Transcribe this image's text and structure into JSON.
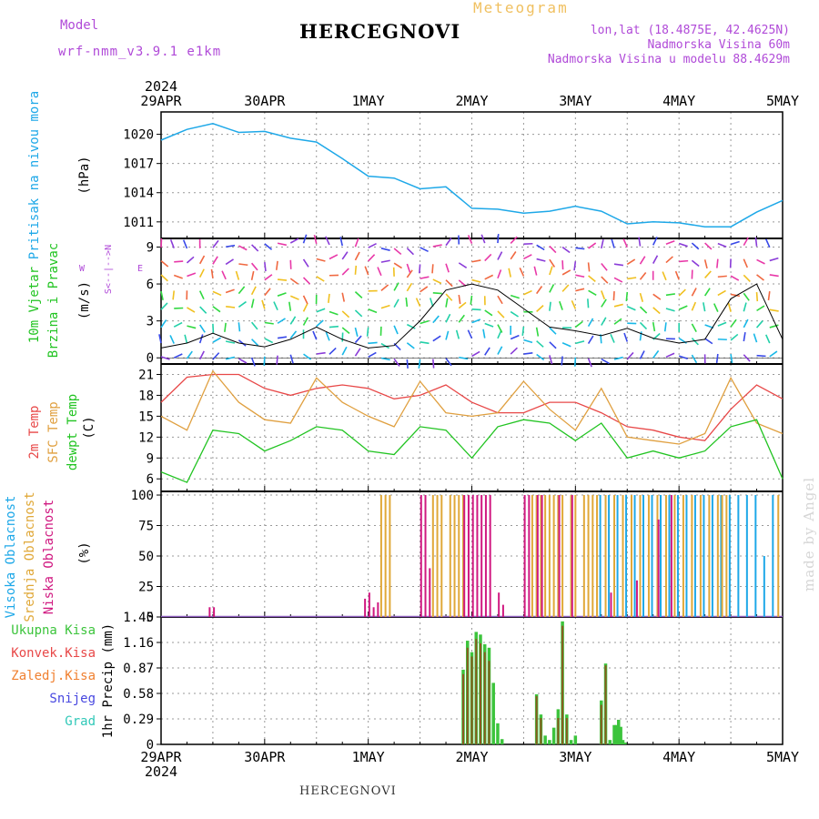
{
  "header": {
    "title": "HERCEGNOVI",
    "model_label": "Model",
    "model_name": "wrf-nmm_v3.9.1 e1km",
    "meteogram_label": "Meteogram",
    "lonlat": "lon,lat (18.4875E, 42.4625N)",
    "elevation": "Nadmorska Visina 60m",
    "model_elevation": "Nadmorska Visina u modelu 88.4629m"
  },
  "footer": {
    "station": "HERCEGNOVI",
    "watermark": "made by Angel"
  },
  "colors": {
    "pressure": "#1ea8e8",
    "temp2m": "#e84848",
    "sfc_temp": "#e0a040",
    "dewpt": "#22c422",
    "cloud_high": "#1ea8e8",
    "cloud_mid": "#e0a838",
    "cloud_low": "#d01880",
    "rain_total": "#3cc43c",
    "rain_conv": "#e84848",
    "rain_frozen": "#f08030",
    "snow": "#4848e0",
    "graupel": "#30c8b8",
    "grid": "#999999",
    "meta": "#b04ad8"
  },
  "chart_data": [
    {
      "type": "line",
      "name": "pressure",
      "ylabel": "Pritisak na nivou mora",
      "unit": "(hPa)",
      "yticks": [
        1011,
        1014,
        1017,
        1020
      ],
      "ylim": [
        1009.3,
        1022.3
      ],
      "x_top_labels": [
        "29APR",
        "30APR",
        "1MAY",
        "2MAY",
        "3MAY",
        "4MAY",
        "5MAY"
      ],
      "x_top_year": "2024",
      "x_hours": [
        0,
        6,
        12,
        18,
        24,
        30,
        36,
        42,
        48,
        54,
        60,
        66,
        72,
        78,
        84,
        90,
        96,
        102,
        108,
        114,
        120,
        126,
        132,
        138,
        144
      ],
      "values": [
        1019.4,
        1020.5,
        1021.1,
        1020.2,
        1020.3,
        1019.6,
        1019.2,
        1017.5,
        1015.7,
        1015.5,
        1014.4,
        1014.6,
        1012.4,
        1012.3,
        1011.9,
        1012.1,
        1012.6,
        1012.1,
        1010.8,
        1011.0,
        1010.9,
        1010.5,
        1010.5,
        1012.0,
        1013.2
      ]
    },
    {
      "type": "wind",
      "name": "wind",
      "ylabel": "10m Vjetar Brzina i Pravac",
      "unit": "(m/s)",
      "yticks": [
        0,
        3,
        6,
        9
      ],
      "ylim": [
        -0.5,
        9.7
      ],
      "compass": {
        "north": "N",
        "west": "W",
        "east": "E",
        "axis": "S<--|-->N"
      },
      "x_hours": [
        0,
        6,
        12,
        18,
        24,
        30,
        36,
        42,
        48,
        54,
        60,
        66,
        72,
        78,
        84,
        90,
        96,
        102,
        108,
        114,
        120,
        126,
        132,
        138,
        144
      ],
      "speed": [
        0.8,
        1.2,
        2.0,
        1.2,
        0.9,
        1.5,
        2.5,
        1.5,
        0.8,
        1.0,
        3.0,
        5.5,
        6.0,
        5.5,
        4.0,
        2.5,
        2.2,
        1.8,
        2.4,
        1.6,
        1.2,
        1.5,
        4.8,
        6.0,
        1.5
      ]
    },
    {
      "type": "line",
      "name": "temperature",
      "ylabel_lines": [
        "2m Temp",
        "SFC Temp",
        "dewpt Temp"
      ],
      "unit": "(C)",
      "yticks": [
        6,
        9,
        12,
        15,
        18,
        21
      ],
      "ylim": [
        4.2,
        22.5
      ],
      "x_hours": [
        0,
        6,
        12,
        18,
        24,
        30,
        36,
        42,
        48,
        54,
        60,
        66,
        72,
        78,
        84,
        90,
        96,
        102,
        108,
        114,
        120,
        126,
        132,
        138,
        144
      ],
      "series": [
        {
          "name": "2m Temp",
          "values": [
            17.0,
            20.6,
            21.0,
            21.0,
            19.0,
            18.0,
            19.0,
            19.5,
            19.0,
            17.5,
            18.0,
            19.5,
            17.0,
            15.5,
            15.5,
            17.0,
            17.0,
            15.5,
            13.5,
            13.0,
            12.0,
            11.5,
            16.0,
            19.5,
            17.5
          ]
        },
        {
          "name": "SFC Temp",
          "values": [
            15.0,
            13.0,
            21.5,
            17.0,
            14.5,
            14.0,
            20.5,
            17.0,
            15.0,
            13.5,
            20.0,
            15.5,
            15.0,
            15.5,
            20.0,
            16.0,
            13.0,
            19.0,
            12.0,
            11.5,
            11.0,
            12.5,
            20.5,
            14.0,
            12.5
          ]
        },
        {
          "name": "dewpt Temp",
          "values": [
            7.0,
            5.5,
            13.0,
            12.5,
            10.0,
            11.5,
            13.5,
            13.0,
            10.0,
            9.5,
            13.5,
            13.0,
            9.0,
            13.5,
            14.5,
            14.0,
            11.5,
            14.0,
            9.0,
            10.0,
            9.0,
            10.0,
            13.5,
            14.5,
            6.0
          ]
        }
      ]
    },
    {
      "type": "bar",
      "name": "clouds",
      "ylabel_lines": [
        "Visoka Oblacnost",
        "Srednja Oblacnost",
        "Niska Oblacnost"
      ],
      "unit": "(%)",
      "yticks": [
        0,
        25,
        50,
        75,
        100
      ],
      "ylim": [
        0,
        103
      ],
      "series": [
        {
          "name": "Visoka Oblacnost",
          "x_hours": [
            102,
            104,
            106,
            108,
            110,
            112,
            114,
            116,
            118,
            120,
            122,
            124,
            126,
            128,
            130,
            132,
            134,
            136,
            138,
            140,
            142
          ],
          "values": [
            100,
            100,
            100,
            100,
            100,
            100,
            100,
            100,
            100,
            100,
            100,
            100,
            100,
            100,
            100,
            100,
            100,
            100,
            100,
            50,
            100
          ]
        },
        {
          "name": "Srednja Oblacnost",
          "x_hours": [
            51,
            52,
            53,
            63,
            64,
            65,
            67,
            68,
            69,
            70,
            86,
            87,
            88,
            89,
            90,
            91,
            92,
            93,
            95,
            96,
            98,
            99,
            100,
            101,
            103,
            105,
            107,
            109,
            111,
            113,
            115,
            117,
            119,
            121,
            123,
            125,
            127,
            129,
            130,
            131,
            143
          ],
          "values": [
            100,
            100,
            100,
            100,
            100,
            100,
            100,
            100,
            100,
            100,
            100,
            100,
            100,
            100,
            100,
            100,
            100,
            100,
            100,
            100,
            100,
            100,
            100,
            100,
            100,
            100,
            100,
            100,
            100,
            100,
            100,
            100,
            100,
            100,
            100,
            100,
            100,
            100,
            100,
            100,
            100
          ]
        },
        {
          "name": "Niska Oblacnost",
          "x_hours": [
            11,
            12,
            47,
            48,
            49,
            50,
            60,
            61,
            62,
            70,
            71,
            72,
            73,
            74,
            75,
            76,
            78,
            79,
            84,
            85,
            87,
            88,
            92,
            95,
            104,
            110,
            115,
            118
          ],
          "values": [
            8,
            8,
            15,
            20,
            8,
            12,
            100,
            100,
            40,
            100,
            100,
            100,
            100,
            100,
            100,
            100,
            20,
            10,
            100,
            100,
            100,
            100,
            100,
            100,
            20,
            30,
            80,
            100
          ]
        }
      ]
    },
    {
      "type": "bar",
      "name": "precipitation",
      "ylabel": "1hr Precip",
      "unit": "(mm)",
      "yticks": [
        0,
        0.29,
        0.58,
        0.87,
        1.16,
        1.45
      ],
      "ylim": [
        0,
        1.45
      ],
      "legend": [
        "Ukupna Kisa",
        "Konvek.Kisa",
        "Zaledj.Kisa",
        "Snijeg",
        "Grad"
      ],
      "x_bottom_labels": [
        "29APR",
        "30APR",
        "1MAY",
        "2MAY",
        "3MAY",
        "4MAY",
        "5MAY"
      ],
      "x_bottom_year": "2024",
      "series": [
        {
          "name": "Ukupna Kisa",
          "x_hours": [
            70,
            71,
            72,
            73,
            74,
            75,
            76,
            77,
            78,
            79,
            87,
            88,
            89,
            90,
            91,
            92,
            93,
            94,
            95,
            96,
            97,
            102,
            103,
            104,
            105,
            105.5,
            106,
            106.5,
            107,
            107.5
          ],
          "values": [
            0.85,
            1.18,
            1.05,
            1.28,
            1.25,
            1.14,
            1.1,
            0.7,
            0.24,
            0.06,
            0.57,
            0.34,
            0.1,
            0.05,
            0.19,
            0.4,
            1.4,
            0.34,
            0.05,
            0.1,
            0.0,
            0.5,
            0.92,
            0.05,
            0.22,
            0.22,
            0.28,
            0.2,
            0.05,
            0.02
          ]
        },
        {
          "name": "Konvek.Kisa",
          "x_hours": [
            70,
            71,
            72,
            73,
            74,
            75,
            76,
            87,
            88,
            92,
            93,
            94,
            102,
            103
          ],
          "values": [
            0.8,
            1.1,
            1.0,
            1.2,
            1.15,
            1.05,
            0.95,
            0.55,
            0.3,
            0.3,
            1.35,
            0.3,
            0.45,
            0.9
          ]
        }
      ]
    }
  ]
}
